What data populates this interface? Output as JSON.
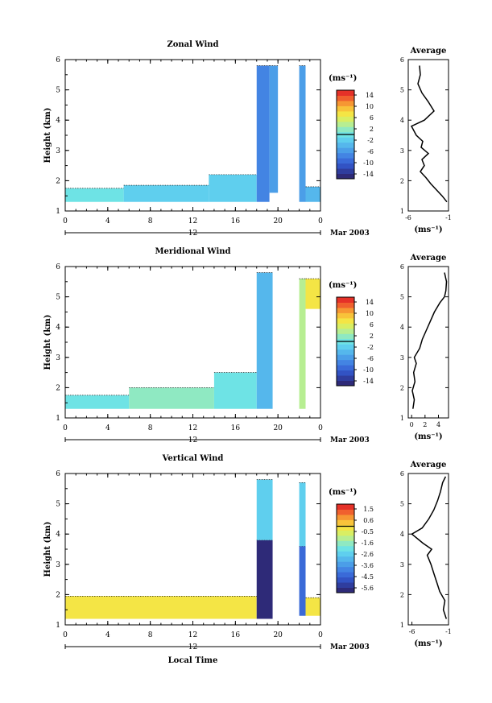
{
  "figure": {
    "xlabel_common": "Local Time",
    "date_label": "Mar 2003",
    "day_label": "12"
  },
  "chart_data": [
    {
      "type": "heatmap",
      "title": "Zonal Wind",
      "ylabel": "Height (km)",
      "xlabel": "Local Time",
      "xlim": [
        0,
        24
      ],
      "ylim": [
        1,
        6
      ],
      "xticks": [
        "0",
        "4",
        "8",
        "12",
        "16",
        "20",
        "0"
      ],
      "yticks": [
        "1",
        "2",
        "3",
        "4",
        "5",
        "6"
      ],
      "colorbar": {
        "unit": "(ms⁻¹)",
        "labels": [
          "14",
          "10",
          "6",
          "2",
          "-2",
          "-6",
          "-10",
          "-14"
        ],
        "min": -16,
        "max": 16
      },
      "columns": [
        {
          "x0": 0.0,
          "x1": 5.5,
          "y0": 1.3,
          "y1": 1.75,
          "value": 0
        },
        {
          "x0": 5.5,
          "x1": 13.5,
          "y0": 1.3,
          "y1": 1.85,
          "value": -1
        },
        {
          "x0": 13.5,
          "x1": 18.0,
          "y0": 1.3,
          "y1": 2.2,
          "value": -2
        },
        {
          "x0": 18.0,
          "x1": 19.2,
          "y0": 1.3,
          "y1": 5.8,
          "value": -7
        },
        {
          "x0": 19.2,
          "x1": 20.0,
          "y0": 1.6,
          "y1": 5.8,
          "value": -5
        },
        {
          "x0": 22.0,
          "x1": 22.6,
          "y0": 1.3,
          "y1": 5.8,
          "value": -6
        },
        {
          "x0": 22.6,
          "x1": 24.0,
          "y0": 1.3,
          "y1": 1.8,
          "value": -3
        }
      ],
      "average_profile": {
        "title": "Average",
        "xlabel": "(ms⁻¹)",
        "xticks": [
          "-6",
          "-1"
        ],
        "xlim": [
          -6,
          -1
        ],
        "points": [
          [
            -1.2,
            1.3
          ],
          [
            -1.8,
            1.5
          ],
          [
            -2.5,
            1.7
          ],
          [
            -3.2,
            1.9
          ],
          [
            -3.8,
            2.1
          ],
          [
            -4.5,
            2.3
          ],
          [
            -4.0,
            2.5
          ],
          [
            -4.3,
            2.7
          ],
          [
            -3.5,
            2.9
          ],
          [
            -4.4,
            3.1
          ],
          [
            -4.2,
            3.3
          ],
          [
            -5.0,
            3.5
          ],
          [
            -5.6,
            3.8
          ],
          [
            -4.0,
            4.0
          ],
          [
            -2.8,
            4.3
          ],
          [
            -3.5,
            4.6
          ],
          [
            -4.3,
            4.9
          ],
          [
            -4.8,
            5.2
          ],
          [
            -4.5,
            5.5
          ],
          [
            -4.6,
            5.8
          ]
        ]
      }
    },
    {
      "type": "heatmap",
      "title": "Meridional Wind",
      "ylabel": "Height (km)",
      "xlabel": "Local Time",
      "xlim": [
        0,
        24
      ],
      "ylim": [
        1,
        6
      ],
      "xticks": [
        "0",
        "4",
        "8",
        "12",
        "16",
        "20",
        "0"
      ],
      "yticks": [
        "1",
        "2",
        "3",
        "4",
        "5",
        "6"
      ],
      "colorbar": {
        "unit": "(ms⁻¹)",
        "labels": [
          "14",
          "10",
          "6",
          "2",
          "-2",
          "-6",
          "-10",
          "-14"
        ],
        "min": -16,
        "max": 16
      },
      "columns": [
        {
          "x0": 0.0,
          "x1": 6.0,
          "y0": 1.3,
          "y1": 1.75,
          "value": 0
        },
        {
          "x0": 6.0,
          "x1": 14.0,
          "y0": 1.3,
          "y1": 2.0,
          "value": 1
        },
        {
          "x0": 14.0,
          "x1": 18.0,
          "y0": 1.3,
          "y1": 2.5,
          "value": 0
        },
        {
          "x0": 18.0,
          "x1": 19.5,
          "y0": 1.3,
          "y1": 5.8,
          "value": -3
        },
        {
          "x0": 22.0,
          "x1": 22.6,
          "y0": 1.3,
          "y1": 5.6,
          "value": 3
        },
        {
          "x0": 22.6,
          "x1": 24.0,
          "y0": 4.6,
          "y1": 5.6,
          "value": 8
        }
      ],
      "average_profile": {
        "title": "Average",
        "xlabel": "(ms⁻¹)",
        "xticks": [
          "0",
          "2",
          "4"
        ],
        "xlim": [
          -0.5,
          5.5
        ],
        "points": [
          [
            0.2,
            1.3
          ],
          [
            0.4,
            1.6
          ],
          [
            0.1,
            1.9
          ],
          [
            0.5,
            2.2
          ],
          [
            0.3,
            2.5
          ],
          [
            0.7,
            2.8
          ],
          [
            0.4,
            3.0
          ],
          [
            1.2,
            3.3
          ],
          [
            1.6,
            3.6
          ],
          [
            2.2,
            3.9
          ],
          [
            2.8,
            4.2
          ],
          [
            3.4,
            4.5
          ],
          [
            4.2,
            4.8
          ],
          [
            4.9,
            5.0
          ],
          [
            5.1,
            5.2
          ],
          [
            5.2,
            5.5
          ],
          [
            4.9,
            5.8
          ]
        ]
      }
    },
    {
      "type": "heatmap",
      "title": "Vertical Wind",
      "ylabel": "Height (km)",
      "xlabel": "Local Time",
      "xlim": [
        0,
        24
      ],
      "ylim": [
        1,
        6
      ],
      "xticks": [
        "0",
        "4",
        "8",
        "12",
        "16",
        "20",
        "0"
      ],
      "yticks": [
        "1",
        "2",
        "3",
        "4",
        "5",
        "6"
      ],
      "colorbar": {
        "unit": "(ms⁻¹)",
        "labels": [
          "1.5",
          "0.6",
          "-0.5",
          "-1.6",
          "-2.6",
          "-3.6",
          "-4.5",
          "-5.6"
        ],
        "min": -6.0,
        "max": 2.0
      },
      "columns": [
        {
          "x0": 0.0,
          "x1": 18.0,
          "y0": 1.2,
          "y1": 1.95,
          "value": 0.0
        },
        {
          "x0": 18.0,
          "x1": 19.5,
          "y0": 1.2,
          "y1": 3.8,
          "value": -5.9
        },
        {
          "x0": 18.0,
          "x1": 19.5,
          "y0": 3.8,
          "y1": 5.8,
          "value": -2.3
        },
        {
          "x0": 22.0,
          "x1": 22.6,
          "y0": 1.3,
          "y1": 3.6,
          "value": -4.5
        },
        {
          "x0": 22.0,
          "x1": 22.6,
          "y0": 3.6,
          "y1": 5.7,
          "value": -2.5
        },
        {
          "x0": 22.6,
          "x1": 24.0,
          "y0": 1.3,
          "y1": 1.9,
          "value": -0.3
        }
      ],
      "average_profile": {
        "title": "Average",
        "xlabel": "(ms⁻¹)",
        "xticks": [
          "-6",
          "-1"
        ],
        "xlim": [
          -6.5,
          -1
        ],
        "points": [
          [
            -1.3,
            1.2
          ],
          [
            -1.7,
            1.5
          ],
          [
            -1.5,
            1.8
          ],
          [
            -2.2,
            2.1
          ],
          [
            -2.6,
            2.4
          ],
          [
            -3.0,
            2.7
          ],
          [
            -3.4,
            3.0
          ],
          [
            -3.9,
            3.3
          ],
          [
            -3.3,
            3.5
          ],
          [
            -4.5,
            3.7
          ],
          [
            -6.0,
            4.0
          ],
          [
            -4.6,
            4.2
          ],
          [
            -3.7,
            4.5
          ],
          [
            -3.0,
            4.8
          ],
          [
            -2.5,
            5.1
          ],
          [
            -2.1,
            5.4
          ],
          [
            -1.8,
            5.7
          ],
          [
            -1.4,
            5.9
          ]
        ]
      }
    }
  ]
}
